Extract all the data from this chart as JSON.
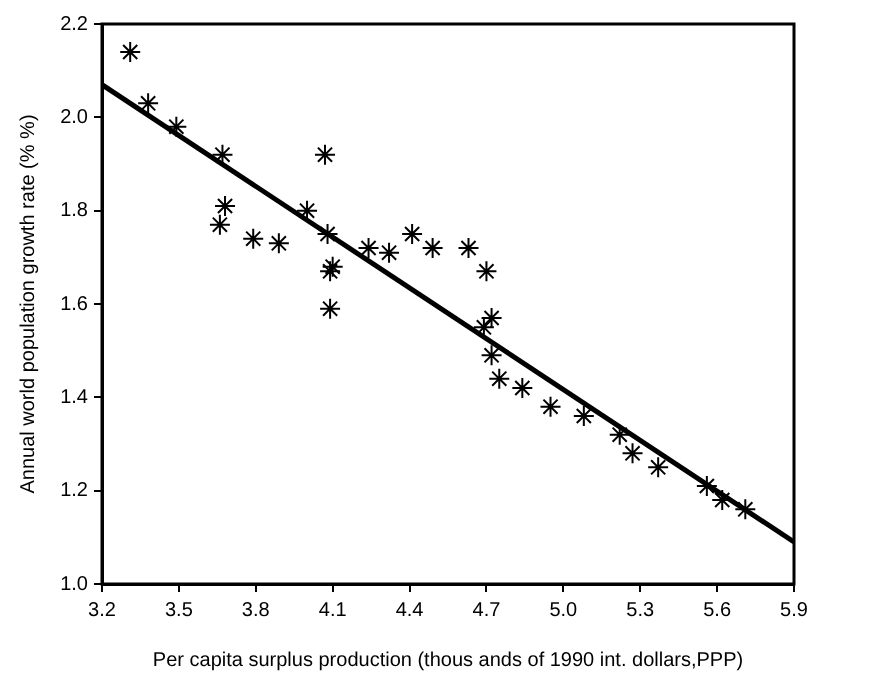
{
  "chart_data": {
    "type": "scatter",
    "xlabel": "Per capita surplus production (thous ands of 1990 int. dollars,PPP)",
    "ylabel": "Annual world population growth rate (% %)",
    "xlim": [
      3.2,
      5.9
    ],
    "xticks": [
      3.2,
      3.5,
      3.8,
      4.1,
      4.4,
      4.7,
      {
        "value": 5,
        "label": "5.0"
      },
      5.3,
      5.6,
      5.9
    ],
    "ylim": [
      1.0,
      2.2
    ],
    "yticks": [
      {
        "value": 1,
        "label": "1.0"
      },
      1.2,
      1.4,
      1.6,
      1.8,
      {
        "value": 2,
        "label": "2.0"
      },
      2.2
    ],
    "grid": false,
    "legend": false,
    "marker": "cross",
    "series": [
      {
        "color": "#000000",
        "x": [
          3.31,
          3.38,
          3.49,
          3.67,
          3.68,
          3.66,
          3.79,
          3.89,
          4.0,
          4.07,
          4.08,
          4.09,
          4.1,
          4.09,
          4.24,
          4.32,
          4.41,
          4.49,
          4.63,
          4.7,
          4.72,
          4.69,
          4.72,
          4.75,
          4.84,
          4.95,
          5.08,
          5.22,
          5.27,
          5.37,
          5.56,
          5.62,
          5.71
        ],
        "values": [
          2.14,
          2.03,
          1.98,
          1.92,
          1.81,
          1.77,
          1.74,
          1.73,
          1.8,
          1.92,
          1.75,
          1.67,
          1.68,
          1.59,
          1.72,
          1.71,
          1.75,
          1.72,
          1.72,
          1.67,
          1.57,
          1.55,
          1.49,
          1.44,
          1.42,
          1.38,
          1.36,
          1.32,
          1.28,
          1.25,
          1.21,
          1.18,
          1.16
        ]
      },
      {
        "type": "line",
        "color": "#000000",
        "line_style": "solid",
        "marker": "none",
        "x": [
          3.2,
          5.9
        ],
        "values": [
          2.07,
          1.09
        ]
      }
    ]
  }
}
